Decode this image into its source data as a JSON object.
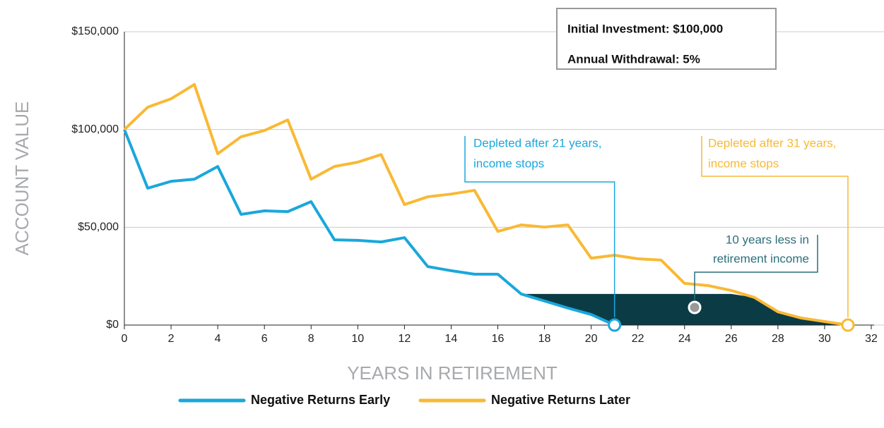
{
  "chart_data": {
    "type": "line",
    "x_label": "YEARS IN RETIREMENT",
    "y_label": "ACCOUNT VALUE",
    "x": [
      0,
      1,
      2,
      3,
      4,
      5,
      6,
      7,
      8,
      9,
      10,
      11,
      12,
      13,
      14,
      15,
      16,
      17,
      18,
      19,
      20,
      21,
      22,
      23,
      24,
      25,
      26,
      27,
      28,
      29,
      30,
      31
    ],
    "series": [
      {
        "name": "Negative Returns Early",
        "color": "#1aa7dc",
        "values": [
          100000,
          70000,
          73500,
          74600,
          81100,
          56600,
          58400,
          58000,
          63100,
          43600,
          43300,
          42500,
          44700,
          29900,
          27800,
          26000,
          26000,
          15900,
          12300,
          8700,
          5400,
          0,
          null,
          null,
          null,
          null,
          null,
          null,
          null,
          null,
          null,
          null
        ]
      },
      {
        "name": "Negative Returns Later",
        "color": "#f9b935",
        "values": [
          100000,
          111400,
          115700,
          123000,
          87600,
          96300,
          99500,
          104900,
          74600,
          81100,
          83300,
          87200,
          61600,
          65600,
          67000,
          68900,
          47900,
          51200,
          50100,
          51200,
          34200,
          35700,
          33900,
          33200,
          21300,
          20200,
          17700,
          14100,
          6800,
          3600,
          1800,
          0
        ]
      }
    ],
    "xlim": [
      0,
      32
    ],
    "xticks": [
      0,
      2,
      4,
      6,
      8,
      10,
      12,
      14,
      16,
      18,
      20,
      22,
      24,
      26,
      28,
      30,
      32
    ],
    "ylim": [
      0,
      150000
    ],
    "yticks": [
      {
        "value": 0,
        "label": "$0"
      },
      {
        "value": 50000,
        "label": "$50,000"
      },
      {
        "value": 100000,
        "label": "$100,000"
      },
      {
        "value": 150000,
        "label": "$150,000"
      }
    ],
    "grid": true,
    "legend": "bottom",
    "info_box": [
      "Initial Investment: $100,000",
      "Annual Withdrawal: 5%"
    ],
    "annotations": [
      {
        "lines": [
          "Depleted after 21 years,",
          "income stops"
        ],
        "color": "#1aa7dc"
      },
      {
        "lines": [
          "Depleted after 31 years,",
          "income stops"
        ],
        "color": "#f9b935"
      },
      {
        "lines": [
          "10 years less in",
          "retirement income"
        ],
        "color": "#2b6f7a"
      }
    ]
  }
}
